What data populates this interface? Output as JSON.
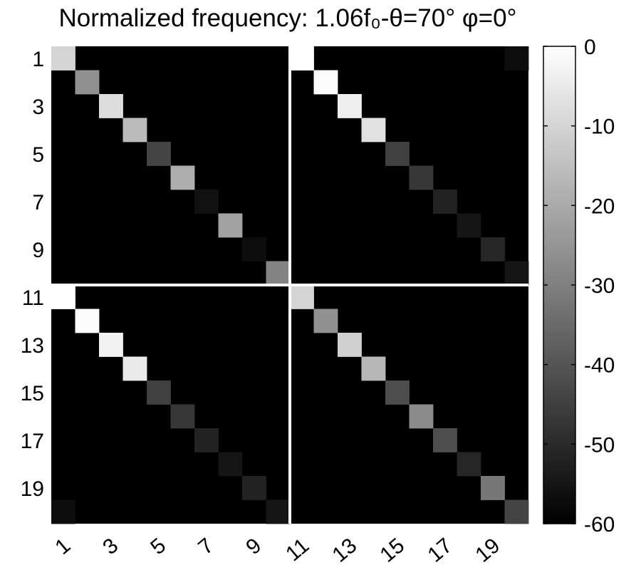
{
  "chart_data": {
    "type": "heatmap",
    "title": "Normalized frequency: 1.06f₀-θ=70° φ=0°",
    "xlabel": "",
    "ylabel": "",
    "rows": 20,
    "cols": 20,
    "x_tick_labels": [
      "1",
      "3",
      "5",
      "7",
      "9",
      "11",
      "13",
      "15",
      "17",
      "19"
    ],
    "y_tick_labels": [
      "1",
      "3",
      "5",
      "7",
      "9",
      "11",
      "13",
      "15",
      "17",
      "19"
    ],
    "x_tick_indices": [
      1,
      3,
      5,
      7,
      9,
      11,
      13,
      15,
      17,
      19
    ],
    "y_tick_indices": [
      1,
      3,
      5,
      7,
      9,
      11,
      13,
      15,
      17,
      19
    ],
    "background_value": -60,
    "block_dividers": [
      10
    ],
    "colorbar": {
      "range": [
        -60,
        0
      ],
      "colormap": "gray",
      "tick_values": [
        0,
        -10,
        -20,
        -30,
        -40,
        -50,
        -60
      ],
      "tick_labels": [
        "0",
        "-10",
        "-20",
        "-30",
        "-40",
        "-50",
        "-60"
      ]
    },
    "cells": [
      {
        "row": 1,
        "col": 1,
        "value": -10
      },
      {
        "row": 2,
        "col": 2,
        "value": -26
      },
      {
        "row": 3,
        "col": 3,
        "value": -8
      },
      {
        "row": 4,
        "col": 4,
        "value": -16
      },
      {
        "row": 5,
        "col": 5,
        "value": -44
      },
      {
        "row": 6,
        "col": 6,
        "value": -19
      },
      {
        "row": 7,
        "col": 7,
        "value": -56
      },
      {
        "row": 8,
        "col": 8,
        "value": -22
      },
      {
        "row": 9,
        "col": 9,
        "value": -57
      },
      {
        "row": 10,
        "col": 10,
        "value": -29
      },
      {
        "row": 1,
        "col": 11,
        "value": 0
      },
      {
        "row": 1,
        "col": 20,
        "value": -57
      },
      {
        "row": 2,
        "col": 12,
        "value": -1
      },
      {
        "row": 3,
        "col": 13,
        "value": -4
      },
      {
        "row": 4,
        "col": 14,
        "value": -7
      },
      {
        "row": 5,
        "col": 15,
        "value": -45
      },
      {
        "row": 6,
        "col": 16,
        "value": -47
      },
      {
        "row": 7,
        "col": 17,
        "value": -52
      },
      {
        "row": 8,
        "col": 18,
        "value": -55
      },
      {
        "row": 9,
        "col": 19,
        "value": -51
      },
      {
        "row": 10,
        "col": 20,
        "value": -55
      },
      {
        "row": 11,
        "col": 1,
        "value": 0
      },
      {
        "row": 12,
        "col": 2,
        "value": -1
      },
      {
        "row": 13,
        "col": 3,
        "value": -3
      },
      {
        "row": 14,
        "col": 4,
        "value": -5
      },
      {
        "row": 15,
        "col": 5,
        "value": -45
      },
      {
        "row": 16,
        "col": 6,
        "value": -47
      },
      {
        "row": 17,
        "col": 7,
        "value": -52
      },
      {
        "row": 18,
        "col": 8,
        "value": -55
      },
      {
        "row": 19,
        "col": 9,
        "value": -52
      },
      {
        "row": 20,
        "col": 10,
        "value": -55
      },
      {
        "row": 20,
        "col": 1,
        "value": -57
      },
      {
        "row": 11,
        "col": 11,
        "value": -10
      },
      {
        "row": 12,
        "col": 12,
        "value": -26
      },
      {
        "row": 13,
        "col": 13,
        "value": -11
      },
      {
        "row": 14,
        "col": 14,
        "value": -17
      },
      {
        "row": 15,
        "col": 15,
        "value": -42
      },
      {
        "row": 16,
        "col": 16,
        "value": -27
      },
      {
        "row": 17,
        "col": 17,
        "value": -42
      },
      {
        "row": 18,
        "col": 18,
        "value": -51
      },
      {
        "row": 19,
        "col": 19,
        "value": -32
      },
      {
        "row": 20,
        "col": 20,
        "value": -44
      }
    ]
  }
}
